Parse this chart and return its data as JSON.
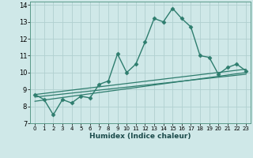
{
  "xlabel": "Humidex (Indice chaleur)",
  "bg_color": "#cfe8e8",
  "grid_color": "#b0d0d0",
  "line_color": "#2e7d6e",
  "xlim": [
    -0.5,
    23.5
  ],
  "ylim": [
    7,
    14.2
  ],
  "yticks": [
    7,
    8,
    9,
    10,
    11,
    12,
    13,
    14
  ],
  "xticks": [
    0,
    1,
    2,
    3,
    4,
    5,
    6,
    7,
    8,
    9,
    10,
    11,
    12,
    13,
    14,
    15,
    16,
    17,
    18,
    19,
    20,
    21,
    22,
    23
  ],
  "series": [
    {
      "x": [
        0,
        1,
        2,
        3,
        4,
        5,
        6,
        7,
        8,
        9,
        10,
        11,
        12,
        13,
        14,
        15,
        16,
        17,
        18,
        19,
        20,
        21,
        22,
        23
      ],
      "y": [
        8.7,
        8.4,
        7.5,
        8.4,
        8.2,
        8.6,
        8.5,
        9.3,
        9.5,
        11.1,
        10.0,
        10.5,
        11.8,
        13.2,
        13.0,
        13.8,
        13.2,
        12.7,
        11.0,
        10.9,
        9.9,
        10.3,
        10.5,
        10.1
      ],
      "marker": "D",
      "markersize": 2.5,
      "linewidth": 1.0
    },
    {
      "x": [
        0,
        23
      ],
      "y": [
        8.7,
        10.2
      ],
      "marker": null,
      "markersize": 0,
      "linewidth": 0.9
    },
    {
      "x": [
        0,
        23
      ],
      "y": [
        8.55,
        9.9
      ],
      "marker": null,
      "markersize": 0,
      "linewidth": 0.9
    },
    {
      "x": [
        0,
        23
      ],
      "y": [
        8.3,
        10.0
      ],
      "marker": null,
      "markersize": 0,
      "linewidth": 0.9
    }
  ]
}
